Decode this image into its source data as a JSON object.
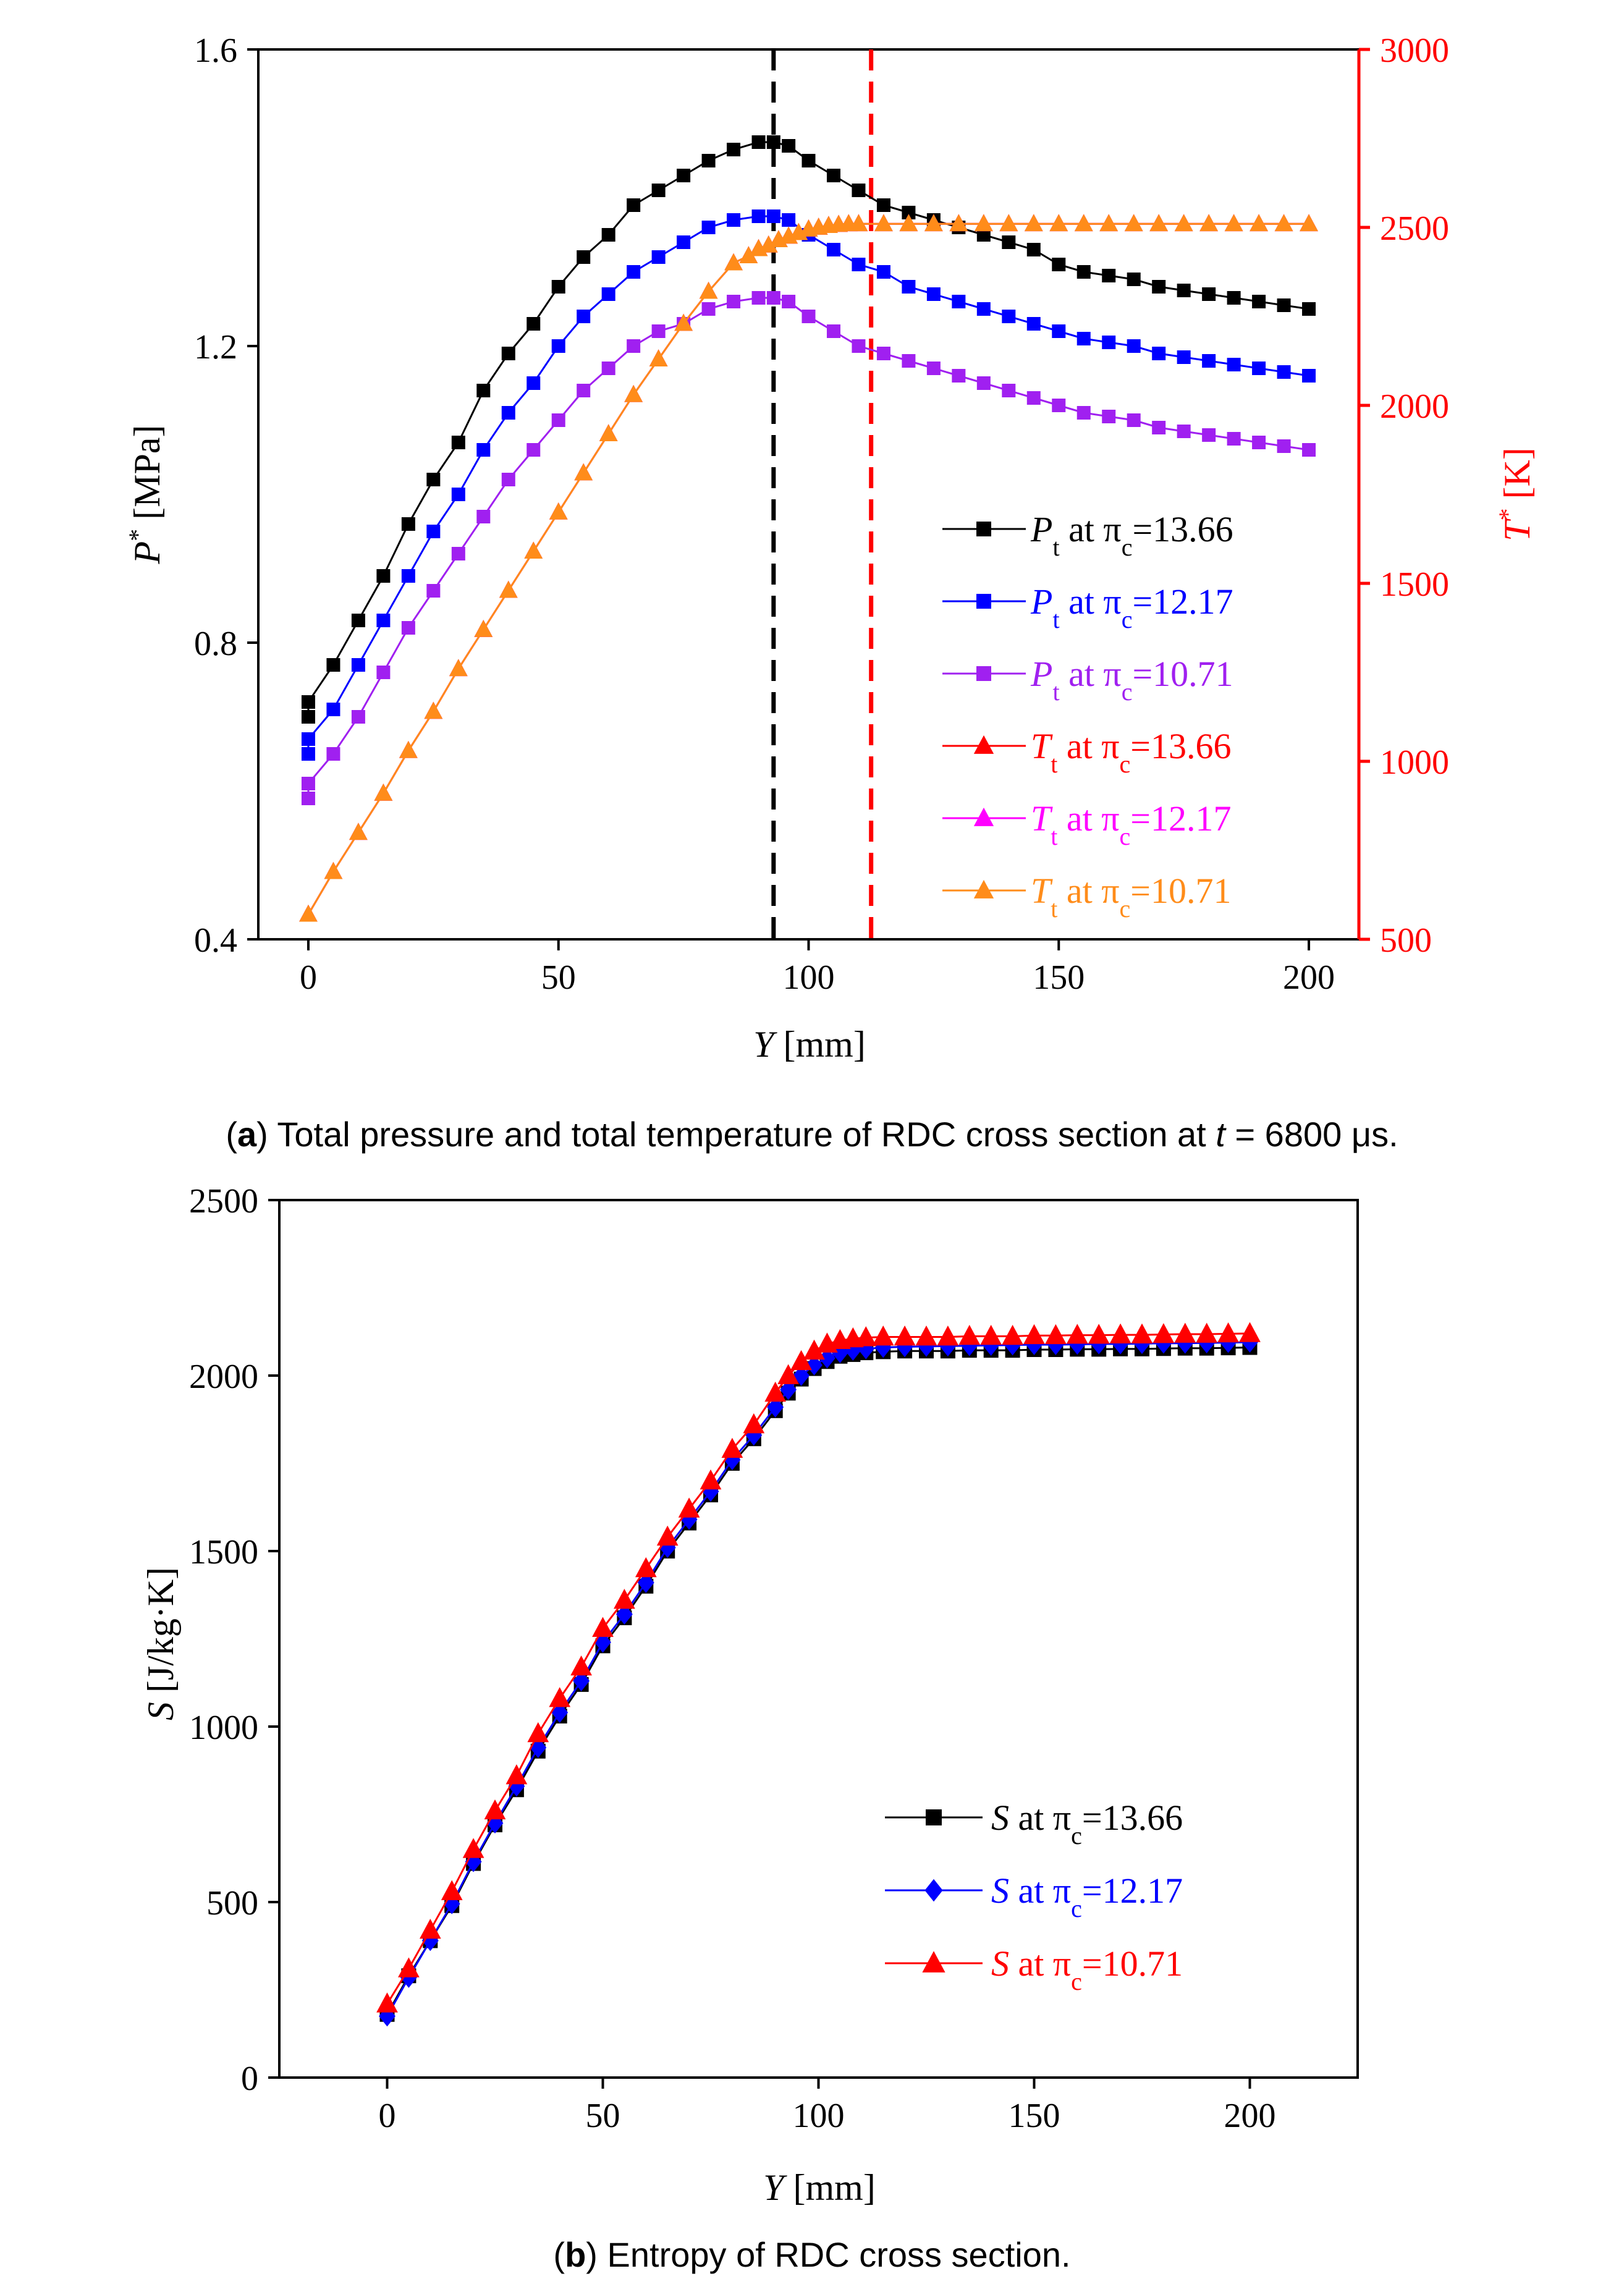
{
  "chart_data": [
    {
      "id": "a",
      "type": "line",
      "caption_label": "a",
      "caption_open": "(",
      "caption_close": ")",
      "caption_text_1": " Total pressure and total temperature of RDC cross section at ",
      "caption_var": "t",
      "caption_text_2": " = 6800 μs.",
      "xlabel": "Y",
      "xlabel_unit": " [mm]",
      "ylabel": "P",
      "ylabel_sup": "*",
      "ylabel_unit": " [MPa]",
      "y2label": "T",
      "y2label_sup": "*",
      "y2label_unit": " [K]",
      "xlim": [
        -10,
        210
      ],
      "ylim": [
        0.4,
        1.6
      ],
      "y2lim": [
        500,
        3000
      ],
      "x_ticks": [
        "0",
        "50",
        "100",
        "150",
        "200"
      ],
      "y_ticks": [
        "0.4",
        "0.8",
        "1.2",
        "1.6"
      ],
      "y2_ticks": [
        "500",
        "1000",
        "1500",
        "2000",
        "2500",
        "3000"
      ],
      "y2_color": "#ff0000",
      "vlines": [
        {
          "x": 93,
          "color": "#000000"
        },
        {
          "x": 112.5,
          "color": "#ff0000"
        }
      ],
      "series": [
        {
          "var": "P",
          "sub": "t",
          "mid": " at π",
          "sub2": "c",
          "post": "=13.66",
          "color": "#000000",
          "marker": "square",
          "axis": "left",
          "x": [
            0,
            0,
            5,
            10,
            15,
            20,
            25,
            30,
            35,
            40,
            45,
            50,
            55,
            60,
            65,
            70,
            75,
            80,
            85,
            90,
            93,
            96,
            100,
            105,
            110,
            115,
            120,
            125,
            130,
            135,
            140,
            145,
            150,
            155,
            160,
            165,
            170,
            175,
            180,
            185,
            190,
            195,
            200
          ],
          "y": [
            0.7,
            0.72,
            0.77,
            0.83,
            0.89,
            0.96,
            1.02,
            1.07,
            1.14,
            1.19,
            1.23,
            1.28,
            1.32,
            1.35,
            1.39,
            1.41,
            1.43,
            1.45,
            1.465,
            1.475,
            1.475,
            1.47,
            1.45,
            1.43,
            1.41,
            1.39,
            1.38,
            1.37,
            1.36,
            1.35,
            1.34,
            1.33,
            1.31,
            1.3,
            1.295,
            1.29,
            1.28,
            1.275,
            1.27,
            1.265,
            1.26,
            1.255,
            1.25
          ]
        },
        {
          "var": "P",
          "sub": "t",
          "mid": " at π",
          "sub2": "c",
          "post": "=12.17",
          "color": "#0000ff",
          "marker": "square",
          "axis": "left",
          "x": [
            0,
            0,
            5,
            10,
            15,
            20,
            25,
            30,
            35,
            40,
            45,
            50,
            55,
            60,
            65,
            70,
            75,
            80,
            85,
            90,
            93,
            96,
            100,
            105,
            110,
            115,
            120,
            125,
            130,
            135,
            140,
            145,
            150,
            155,
            160,
            165,
            170,
            175,
            180,
            185,
            190,
            195,
            200
          ],
          "y": [
            0.65,
            0.67,
            0.71,
            0.77,
            0.83,
            0.89,
            0.95,
            1.0,
            1.06,
            1.11,
            1.15,
            1.2,
            1.24,
            1.27,
            1.3,
            1.32,
            1.34,
            1.36,
            1.37,
            1.375,
            1.375,
            1.37,
            1.35,
            1.33,
            1.31,
            1.3,
            1.28,
            1.27,
            1.26,
            1.25,
            1.24,
            1.23,
            1.22,
            1.21,
            1.205,
            1.2,
            1.19,
            1.185,
            1.18,
            1.175,
            1.17,
            1.165,
            1.16
          ]
        },
        {
          "var": "P",
          "sub": "t",
          "mid": " at π",
          "sub2": "c",
          "post": "=10.71",
          "color": "#a020f0",
          "marker": "square",
          "axis": "left",
          "x": [
            0,
            0,
            5,
            10,
            15,
            20,
            25,
            30,
            35,
            40,
            45,
            50,
            55,
            60,
            65,
            70,
            75,
            80,
            85,
            90,
            93,
            96,
            100,
            105,
            110,
            115,
            120,
            125,
            130,
            135,
            140,
            145,
            150,
            155,
            160,
            165,
            170,
            175,
            180,
            185,
            190,
            195,
            200
          ],
          "y": [
            0.59,
            0.61,
            0.65,
            0.7,
            0.76,
            0.82,
            0.87,
            0.92,
            0.97,
            1.02,
            1.06,
            1.1,
            1.14,
            1.17,
            1.2,
            1.22,
            1.23,
            1.25,
            1.26,
            1.265,
            1.265,
            1.26,
            1.24,
            1.22,
            1.2,
            1.19,
            1.18,
            1.17,
            1.16,
            1.15,
            1.14,
            1.13,
            1.12,
            1.11,
            1.105,
            1.1,
            1.09,
            1.085,
            1.08,
            1.075,
            1.07,
            1.065,
            1.06
          ]
        },
        {
          "var": "T",
          "sub": "t",
          "mid": " at π",
          "sub2": "c",
          "post": "=13.66",
          "color": "#ff0000",
          "marker": "triangle",
          "axis": "right",
          "x": [
            0,
            5,
            10,
            15,
            20,
            25,
            30,
            35,
            40,
            45,
            50,
            55,
            60,
            65,
            70,
            75,
            80,
            85,
            88,
            90,
            92,
            94,
            96,
            98,
            100,
            102,
            104,
            106,
            108,
            110,
            115,
            120,
            125,
            130,
            135,
            140,
            145,
            150,
            155,
            160,
            165,
            170,
            175,
            180,
            185,
            190,
            195,
            200
          ],
          "y": [
            570,
            690,
            800,
            910,
            1030,
            1140,
            1260,
            1370,
            1480,
            1590,
            1700,
            1810,
            1920,
            2030,
            2130,
            2230,
            2320,
            2400,
            2420,
            2440,
            2450,
            2465,
            2475,
            2485,
            2495,
            2500,
            2505,
            2508,
            2510,
            2510,
            2510,
            2510,
            2510,
            2510,
            2510,
            2510,
            2510,
            2510,
            2510,
            2510,
            2510,
            2510,
            2510,
            2510,
            2510,
            2510,
            2510,
            2510
          ]
        },
        {
          "var": "T",
          "sub": "t",
          "mid": " at π",
          "sub2": "c",
          "post": "=12.17",
          "color": "#ff00ff",
          "marker": "triangle",
          "axis": "right",
          "x": [
            0,
            5,
            10,
            15,
            20,
            25,
            30,
            35,
            40,
            45,
            50,
            55,
            60,
            65,
            70,
            75,
            80,
            85,
            88,
            90,
            92,
            94,
            96,
            98,
            100,
            102,
            104,
            106,
            108,
            110,
            115,
            120,
            125,
            130,
            135,
            140,
            145,
            150,
            155,
            160,
            165,
            170,
            175,
            180,
            185,
            190,
            195,
            200
          ],
          "y": [
            570,
            690,
            800,
            910,
            1030,
            1140,
            1260,
            1370,
            1480,
            1590,
            1700,
            1810,
            1920,
            2030,
            2130,
            2230,
            2320,
            2400,
            2420,
            2440,
            2450,
            2465,
            2475,
            2485,
            2495,
            2500,
            2505,
            2508,
            2510,
            2510,
            2510,
            2510,
            2510,
            2510,
            2510,
            2510,
            2510,
            2510,
            2510,
            2510,
            2510,
            2510,
            2510,
            2510,
            2510,
            2510,
            2510,
            2510
          ]
        },
        {
          "var": "T",
          "sub": "t",
          "mid": " at π",
          "sub2": "c",
          "post": "=10.71",
          "color": "#ff8c1a",
          "marker": "triangle",
          "axis": "right",
          "x": [
            0,
            5,
            10,
            15,
            20,
            25,
            30,
            35,
            40,
            45,
            50,
            55,
            60,
            65,
            70,
            75,
            80,
            85,
            88,
            90,
            92,
            94,
            96,
            98,
            100,
            102,
            104,
            106,
            108,
            110,
            115,
            120,
            125,
            130,
            135,
            140,
            145,
            150,
            155,
            160,
            165,
            170,
            175,
            180,
            185,
            190,
            195,
            200
          ],
          "y": [
            570,
            690,
            800,
            910,
            1030,
            1140,
            1260,
            1370,
            1480,
            1590,
            1700,
            1810,
            1920,
            2030,
            2130,
            2230,
            2320,
            2400,
            2420,
            2440,
            2450,
            2465,
            2475,
            2485,
            2495,
            2500,
            2505,
            2508,
            2510,
            2510,
            2510,
            2510,
            2510,
            2510,
            2510,
            2510,
            2510,
            2510,
            2510,
            2510,
            2510,
            2510,
            2510,
            2510,
            2510,
            2510,
            2510,
            2510
          ]
        }
      ]
    },
    {
      "id": "b",
      "type": "line",
      "caption_label": "b",
      "caption_open": "(",
      "caption_close": ")",
      "caption_text_1": " Entropy of RDC cross section.",
      "xlabel": "Y",
      "xlabel_unit": " [mm]",
      "ylabel": "S",
      "ylabel_unit": " [J/kg·K]",
      "xlim": [
        -25,
        225
      ],
      "ylim": [
        0,
        2500
      ],
      "x_ticks": [
        "0",
        "50",
        "100",
        "150",
        "200"
      ],
      "y_ticks": [
        "0",
        "500",
        "1000",
        "1500",
        "2000",
        "2500"
      ],
      "series": [
        {
          "var": "S",
          "mid": " at π",
          "sub2": "c",
          "post": "=13.66",
          "color": "#000000",
          "marker": "square",
          "x": [
            0,
            5,
            10,
            15,
            20,
            25,
            30,
            35,
            40,
            45,
            50,
            55,
            60,
            65,
            70,
            75,
            80,
            85,
            90,
            93,
            96,
            99,
            102,
            105,
            108,
            111,
            115,
            120,
            125,
            130,
            135,
            140,
            145,
            150,
            155,
            160,
            165,
            170,
            175,
            180,
            185,
            190,
            195,
            200
          ],
          "y": [
            180,
            290,
            390,
            490,
            610,
            720,
            820,
            930,
            1030,
            1120,
            1230,
            1310,
            1400,
            1500,
            1580,
            1660,
            1750,
            1820,
            1900,
            1950,
            1990,
            2020,
            2040,
            2055,
            2060,
            2065,
            2068,
            2070,
            2070,
            2070,
            2072,
            2072,
            2072,
            2074,
            2074,
            2075,
            2075,
            2076,
            2076,
            2077,
            2078,
            2078,
            2079,
            2080
          ]
        },
        {
          "var": "S",
          "mid": " at π",
          "sub2": "c",
          "post": "=12.17",
          "color": "#0000ff",
          "marker": "diamond",
          "x": [
            0,
            5,
            10,
            15,
            20,
            25,
            30,
            35,
            40,
            45,
            50,
            55,
            60,
            65,
            70,
            75,
            80,
            85,
            90,
            93,
            96,
            99,
            102,
            105,
            108,
            111,
            115,
            120,
            125,
            130,
            135,
            140,
            145,
            150,
            155,
            160,
            165,
            170,
            175,
            180,
            185,
            190,
            195,
            200
          ],
          "y": [
            175,
            285,
            390,
            495,
            615,
            725,
            830,
            940,
            1040,
            1130,
            1240,
            1320,
            1410,
            1510,
            1590,
            1670,
            1760,
            1830,
            1910,
            1960,
            2000,
            2030,
            2050,
            2065,
            2072,
            2076,
            2080,
            2082,
            2083,
            2084,
            2085,
            2086,
            2087,
            2088,
            2088,
            2089,
            2090,
            2090,
            2091,
            2092,
            2092,
            2093,
            2094,
            2095
          ]
        },
        {
          "var": "S",
          "mid": " at π",
          "sub2": "c",
          "post": "=10.71",
          "color": "#ff0000",
          "marker": "triangle",
          "x": [
            0,
            5,
            10,
            15,
            20,
            25,
            30,
            35,
            40,
            45,
            50,
            55,
            60,
            65,
            70,
            75,
            80,
            85,
            90,
            93,
            96,
            99,
            102,
            105,
            108,
            111,
            115,
            120,
            125,
            130,
            135,
            140,
            145,
            150,
            155,
            160,
            165,
            170,
            175,
            180,
            185,
            190,
            195,
            200
          ],
          "y": [
            210,
            310,
            420,
            530,
            650,
            760,
            860,
            980,
            1080,
            1170,
            1280,
            1360,
            1450,
            1540,
            1620,
            1700,
            1790,
            1860,
            1950,
            2000,
            2040,
            2070,
            2090,
            2100,
            2105,
            2108,
            2110,
            2110,
            2110,
            2110,
            2112,
            2112,
            2112,
            2114,
            2114,
            2115,
            2115,
            2116,
            2116,
            2117,
            2118,
            2118,
            2119,
            2120
          ]
        }
      ]
    }
  ]
}
